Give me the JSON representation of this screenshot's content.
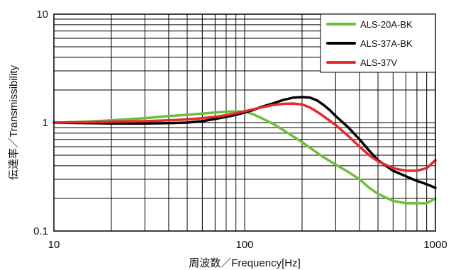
{
  "chart_data": {
    "type": "line",
    "x_scale": "log",
    "y_scale": "log",
    "xlim": [
      10,
      1000
    ],
    "ylim": [
      0.1,
      10
    ],
    "xlabel": "周波数／Frequency[Hz]",
    "ylabel": "伝達率／Transmissibility",
    "x_ticks": [
      {
        "value": 10,
        "label": "10"
      },
      {
        "value": 100,
        "label": "100"
      },
      {
        "value": 1000,
        "label": "1000"
      }
    ],
    "y_ticks": [
      {
        "value": 10,
        "label": "10"
      },
      {
        "value": 1,
        "label": "1"
      },
      {
        "value": 0.1,
        "label": "0.1"
      }
    ],
    "grid": true,
    "legend_position": "top-right",
    "series": [
      {
        "name": "ALS-20A-BK",
        "color": "#6cbf3c",
        "x": [
          10,
          15,
          20,
          30,
          40,
          50,
          60,
          70,
          80,
          90,
          100,
          110,
          120,
          140,
          160,
          200,
          250,
          300,
          350,
          400,
          450,
          500,
          600,
          700,
          800,
          900,
          1000
        ],
        "y": [
          1.0,
          1.02,
          1.05,
          1.1,
          1.15,
          1.18,
          1.21,
          1.24,
          1.26,
          1.27,
          1.26,
          1.2,
          1.12,
          0.98,
          0.85,
          0.66,
          0.5,
          0.41,
          0.35,
          0.3,
          0.25,
          0.22,
          0.19,
          0.18,
          0.18,
          0.18,
          0.2
        ]
      },
      {
        "name": "ALS-37A-BK",
        "color": "#000000",
        "x": [
          10,
          15,
          20,
          30,
          40,
          50,
          60,
          70,
          80,
          90,
          100,
          110,
          120,
          140,
          160,
          180,
          200,
          220,
          240,
          260,
          280,
          300,
          350,
          400,
          450,
          500,
          600,
          700,
          800,
          850,
          900,
          950,
          1000
        ],
        "y": [
          1.0,
          0.99,
          0.98,
          0.98,
          0.99,
          1.0,
          1.03,
          1.08,
          1.13,
          1.18,
          1.24,
          1.3,
          1.38,
          1.5,
          1.62,
          1.7,
          1.72,
          1.7,
          1.6,
          1.45,
          1.3,
          1.15,
          0.9,
          0.7,
          0.55,
          0.45,
          0.36,
          0.32,
          0.29,
          0.28,
          0.27,
          0.26,
          0.25
        ]
      },
      {
        "name": "ALS-37V",
        "color": "#e8282b",
        "x": [
          10,
          15,
          20,
          30,
          40,
          50,
          60,
          70,
          80,
          90,
          100,
          120,
          140,
          160,
          180,
          200,
          220,
          250,
          300,
          350,
          400,
          450,
          500,
          600,
          700,
          800,
          900,
          1000
        ],
        "y": [
          1.0,
          1.01,
          1.02,
          1.03,
          1.05,
          1.07,
          1.1,
          1.13,
          1.17,
          1.22,
          1.27,
          1.37,
          1.45,
          1.49,
          1.5,
          1.47,
          1.38,
          1.2,
          0.95,
          0.75,
          0.6,
          0.5,
          0.44,
          0.38,
          0.36,
          0.36,
          0.38,
          0.45
        ]
      }
    ]
  }
}
